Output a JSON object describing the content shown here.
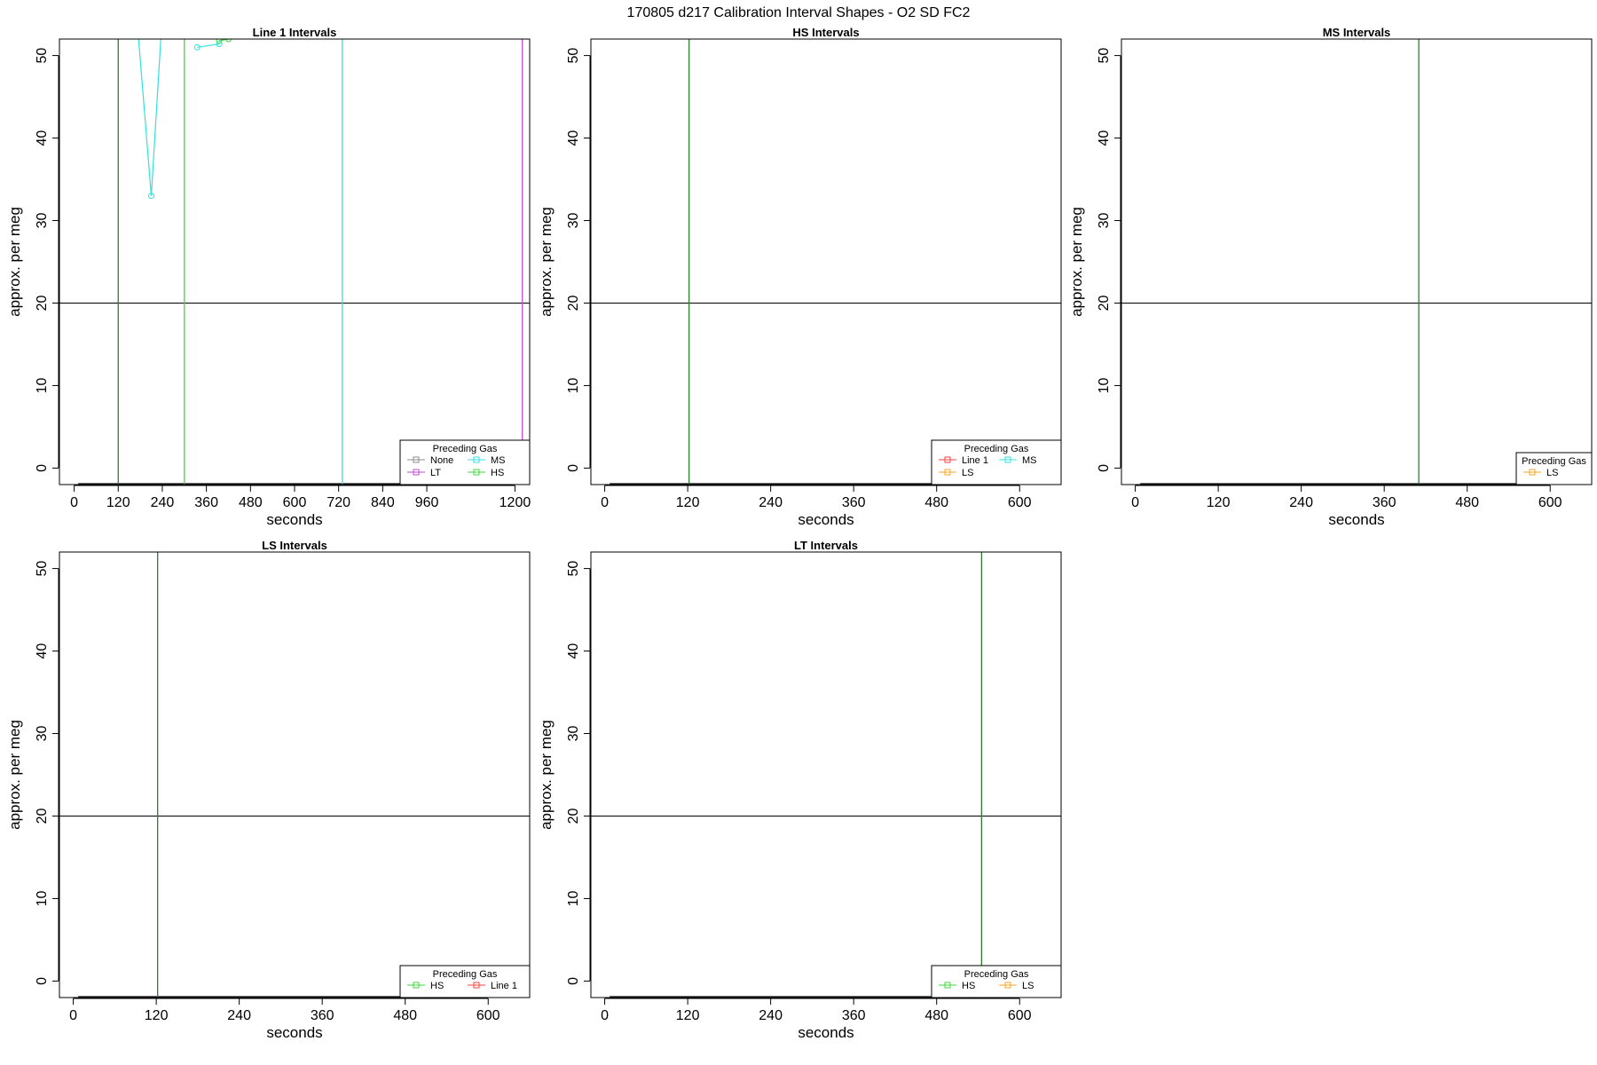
{
  "figure_title": "170805   d217   Calibration Interval Shapes - O2 SD FC2",
  "colors": {
    "None": "#8c8c8c",
    "MS": "#33e0e0",
    "LT": "#c24bd0",
    "HS": "#3fd93f",
    "Line 1": "#ff4040",
    "LS": "#f5a623",
    "vline_dark": "#2e7d32",
    "hline": "#000000"
  },
  "chart_data": [
    {
      "type": "line",
      "title": "Line 1 Intervals",
      "xlabel": "seconds",
      "ylabel": "approx. per meg",
      "xlim": [
        -40,
        1240
      ],
      "ylim": [
        -2,
        52
      ],
      "xticks": [
        0,
        120,
        240,
        360,
        480,
        600,
        720,
        840,
        960,
        1200
      ],
      "yticks": [
        0,
        10,
        20,
        30,
        40,
        50
      ],
      "hline": 20,
      "legend": {
        "title": "Preceding Gas",
        "position": "bottom-right",
        "columns": 2,
        "entries": [
          "None",
          "MS",
          "LT",
          "HS"
        ]
      },
      "vlines": [
        {
          "x": 120,
          "series": "vline_dark"
        },
        {
          "x": 300,
          "series": "HS"
        },
        {
          "x": 730,
          "series": "MS"
        },
        {
          "x": 1220,
          "series": "LT"
        }
      ],
      "series": [
        {
          "name": "MS",
          "marker": true,
          "points": [
            [
              170,
              55
            ],
            [
              210,
              33
            ],
            [
              240,
              55
            ]
          ]
        },
        {
          "name": "MS",
          "marker": true,
          "points": [
            [
              335,
              51
            ],
            [
              395,
              51.4
            ]
          ]
        },
        {
          "name": "HS",
          "marker": true,
          "points": [
            [
              395,
              51.8
            ],
            [
              420,
              52
            ]
          ]
        }
      ]
    },
    {
      "type": "line",
      "title": "HS Intervals",
      "xlabel": "seconds",
      "ylabel": "approx. per meg",
      "xlim": [
        -20,
        660
      ],
      "ylim": [
        -2,
        52
      ],
      "xticks": [
        0,
        120,
        240,
        360,
        480,
        600
      ],
      "yticks": [
        0,
        10,
        20,
        30,
        40,
        50
      ],
      "hline": 20,
      "legend": {
        "title": "Preceding Gas",
        "position": "bottom-right",
        "columns": 2,
        "entries": [
          "Line 1",
          "MS",
          "LS"
        ]
      },
      "vlines": [
        {
          "x": 122,
          "series": "vline_dark"
        }
      ],
      "series": []
    },
    {
      "type": "line",
      "title": "MS Intervals",
      "xlabel": "seconds",
      "ylabel": "approx. per meg",
      "xlim": [
        -20,
        660
      ],
      "ylim": [
        -2,
        52
      ],
      "xticks": [
        0,
        120,
        240,
        360,
        480,
        600
      ],
      "yticks": [
        0,
        10,
        20,
        30,
        40,
        50
      ],
      "hline": 20,
      "legend": {
        "title": "Preceding Gas",
        "position": "bottom-right",
        "columns": 1,
        "entries": [
          "LS"
        ]
      },
      "vlines": [
        {
          "x": 410,
          "series": "vline_dark"
        }
      ],
      "series": []
    },
    {
      "type": "line",
      "title": "LS Intervals",
      "xlabel": "seconds",
      "ylabel": "approx. per meg",
      "xlim": [
        -20,
        660
      ],
      "ylim": [
        -2,
        52
      ],
      "xticks": [
        0,
        120,
        240,
        360,
        480,
        600
      ],
      "yticks": [
        0,
        10,
        20,
        30,
        40,
        50
      ],
      "hline": 20,
      "legend": {
        "title": "Preceding Gas",
        "position": "bottom-right",
        "columns": 2,
        "entries": [
          "HS",
          "Line 1"
        ]
      },
      "vlines": [
        {
          "x": 122,
          "series": "vline_dark"
        }
      ],
      "series": []
    },
    {
      "type": "line",
      "title": "LT Intervals",
      "xlabel": "seconds",
      "ylabel": "approx. per meg",
      "xlim": [
        -20,
        660
      ],
      "ylim": [
        -2,
        52
      ],
      "xticks": [
        0,
        120,
        240,
        360,
        480,
        600
      ],
      "yticks": [
        0,
        10,
        20,
        30,
        40,
        50
      ],
      "hline": 20,
      "legend": {
        "title": "Preceding Gas",
        "position": "bottom-right",
        "columns": 2,
        "entries": [
          "HS",
          "LS"
        ]
      },
      "vlines": [
        {
          "x": 545,
          "series": "vline_dark"
        }
      ],
      "series": []
    }
  ]
}
